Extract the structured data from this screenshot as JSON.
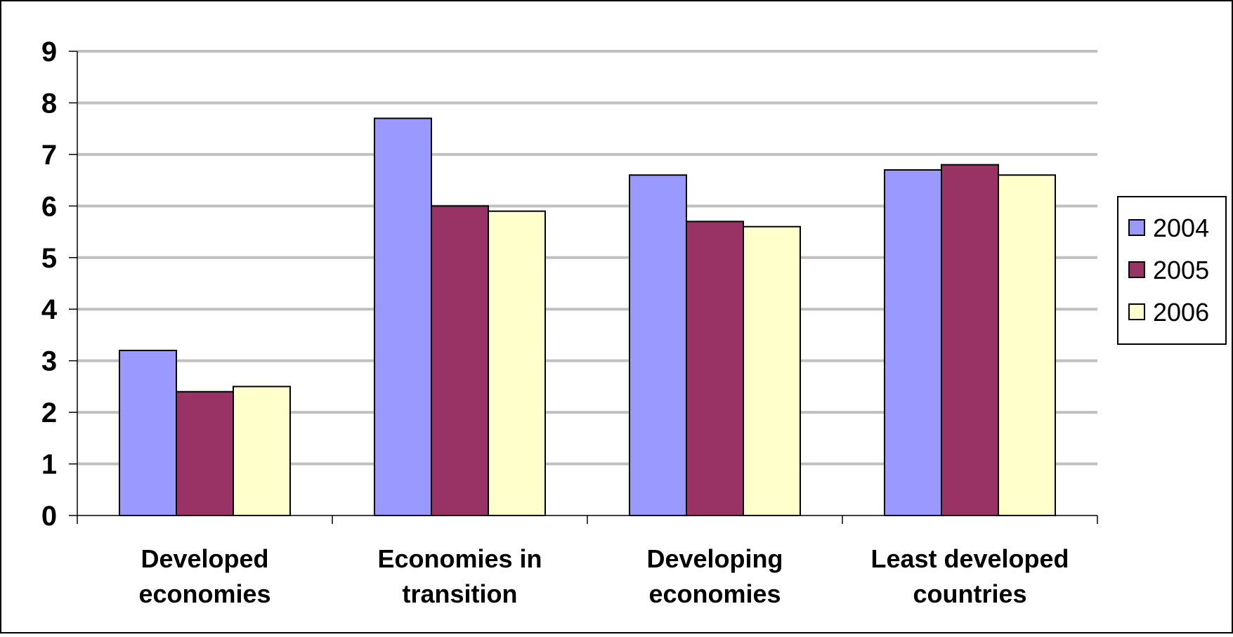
{
  "chart_data": {
    "type": "bar",
    "title": "",
    "xlabel": "",
    "ylabel": "",
    "categories": [
      [
        "Developed",
        "economies"
      ],
      [
        "Economies in",
        "transition"
      ],
      [
        "Developing",
        "economies"
      ],
      [
        "Least developed",
        "countries"
      ]
    ],
    "series": [
      {
        "name": "2004",
        "color": "#9999ff",
        "values": [
          3.2,
          7.7,
          6.6,
          6.7
        ]
      },
      {
        "name": "2005",
        "color": "#993366",
        "values": [
          2.4,
          6.0,
          5.7,
          6.8
        ]
      },
      {
        "name": "2006",
        "color": "#ffffcc",
        "values": [
          2.5,
          5.9,
          5.6,
          6.6
        ]
      }
    ],
    "ylim": [
      0,
      9
    ],
    "yticks": [
      0,
      1,
      2,
      3,
      4,
      5,
      6,
      7,
      8,
      9
    ],
    "grid": true,
    "legend_position": "right"
  }
}
